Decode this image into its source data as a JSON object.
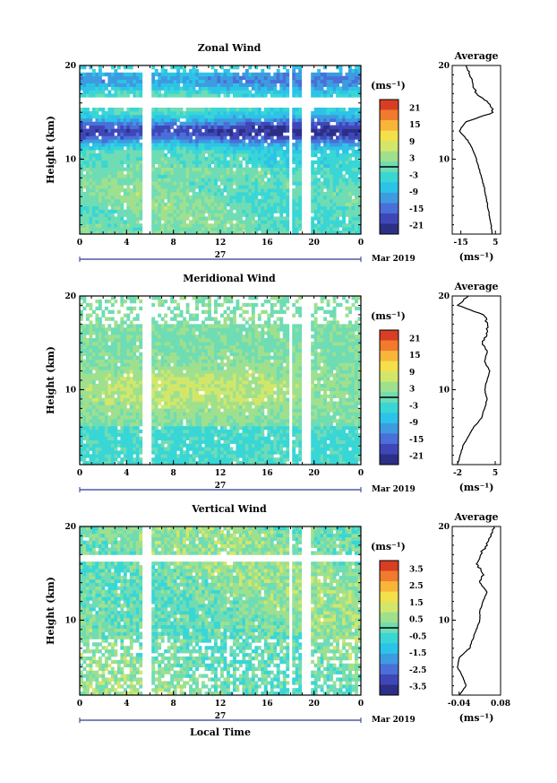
{
  "chart_data": [
    {
      "type": "heatmap",
      "title": "Zonal Wind",
      "xlabel": "",
      "ylabel": "Height (km)",
      "x_ticks": [
        "0",
        "4",
        "8",
        "12",
        "16",
        "20",
        "0"
      ],
      "y_ticks": [
        "20",
        "10"
      ],
      "date_tick": "27",
      "date_label": "Mar 2019",
      "colorbar": {
        "unit": "(ms⁻¹)",
        "ticks": [
          "21",
          "15",
          "9",
          "3",
          "-3",
          "-9",
          "-15",
          "-21"
        ]
      },
      "profile": {
        "title": "Average",
        "xlabel": "(ms⁻¹)",
        "x_ticks": [
          "-15",
          "5"
        ],
        "y_ticks": [
          "20",
          "10"
        ],
        "xlim": [
          -20,
          8
        ],
        "height": [
          2,
          3,
          4,
          5,
          6,
          7,
          8,
          9,
          10,
          11,
          12,
          13,
          14,
          15,
          16,
          17,
          18,
          19,
          20
        ],
        "values": [
          3,
          2.5,
          1.5,
          0.5,
          -0.5,
          -1.5,
          -3,
          -4.5,
          -6,
          -8,
          -11,
          -16,
          -12,
          4,
          1,
          -6,
          -8,
          -10,
          -12
        ]
      }
    },
    {
      "type": "heatmap",
      "title": "Meridional Wind",
      "xlabel": "",
      "ylabel": "Height (km)",
      "x_ticks": [
        "0",
        "4",
        "8",
        "12",
        "16",
        "20",
        "0"
      ],
      "y_ticks": [
        "20",
        "10"
      ],
      "date_tick": "27",
      "date_label": "Mar 2019",
      "colorbar": {
        "unit": "(ms⁻¹)",
        "ticks": [
          "21",
          "15",
          "9",
          "3",
          "-3",
          "-9",
          "-15",
          "-21"
        ]
      },
      "profile": {
        "title": "Average",
        "xlabel": "(ms⁻¹)",
        "x_ticks": [
          "-2",
          "5"
        ],
        "y_ticks": [
          "20",
          "10"
        ],
        "xlim": [
          -3,
          6
        ],
        "height": [
          2,
          3,
          4,
          5,
          6,
          7,
          8,
          9,
          10,
          11,
          12,
          13,
          14,
          15,
          16,
          17,
          18,
          19,
          20
        ],
        "values": [
          -2,
          -1.5,
          -1,
          0,
          1,
          2.5,
          3,
          3.5,
          3,
          3.5,
          4,
          3,
          3.5,
          2.5,
          3.5,
          3.5,
          3,
          -2,
          0
        ]
      }
    },
    {
      "type": "heatmap",
      "title": "Vertical Wind",
      "xlabel": "Local Time",
      "ylabel": "Height (km)",
      "x_ticks": [
        "0",
        "4",
        "8",
        "12",
        "16",
        "20",
        "0"
      ],
      "y_ticks": [
        "20",
        "10"
      ],
      "date_tick": "27",
      "date_label": "Mar 2019",
      "colorbar": {
        "unit": "(ms⁻¹)",
        "ticks": [
          "3.5",
          "2.5",
          "1.5",
          "0.5",
          "-0.5",
          "-1.5",
          "-2.5",
          "-3.5"
        ]
      },
      "profile": {
        "title": "Average",
        "xlabel": "(ms⁻¹)",
        "x_ticks": [
          "-0.04",
          "0.08"
        ],
        "y_ticks": [
          "20",
          "10"
        ],
        "xlim": [
          -0.06,
          0.08
        ],
        "height": [
          2,
          3,
          4,
          5,
          6,
          7,
          8,
          9,
          10,
          11,
          12,
          13,
          14,
          15,
          16,
          17,
          18,
          19,
          20
        ],
        "values": [
          -0.04,
          -0.02,
          -0.03,
          -0.045,
          -0.04,
          -0.01,
          0.0,
          0.01,
          0.02,
          0.02,
          0.03,
          0.04,
          0.02,
          0.03,
          0.01,
          0.02,
          0.04,
          0.05,
          0.06
        ]
      }
    }
  ]
}
